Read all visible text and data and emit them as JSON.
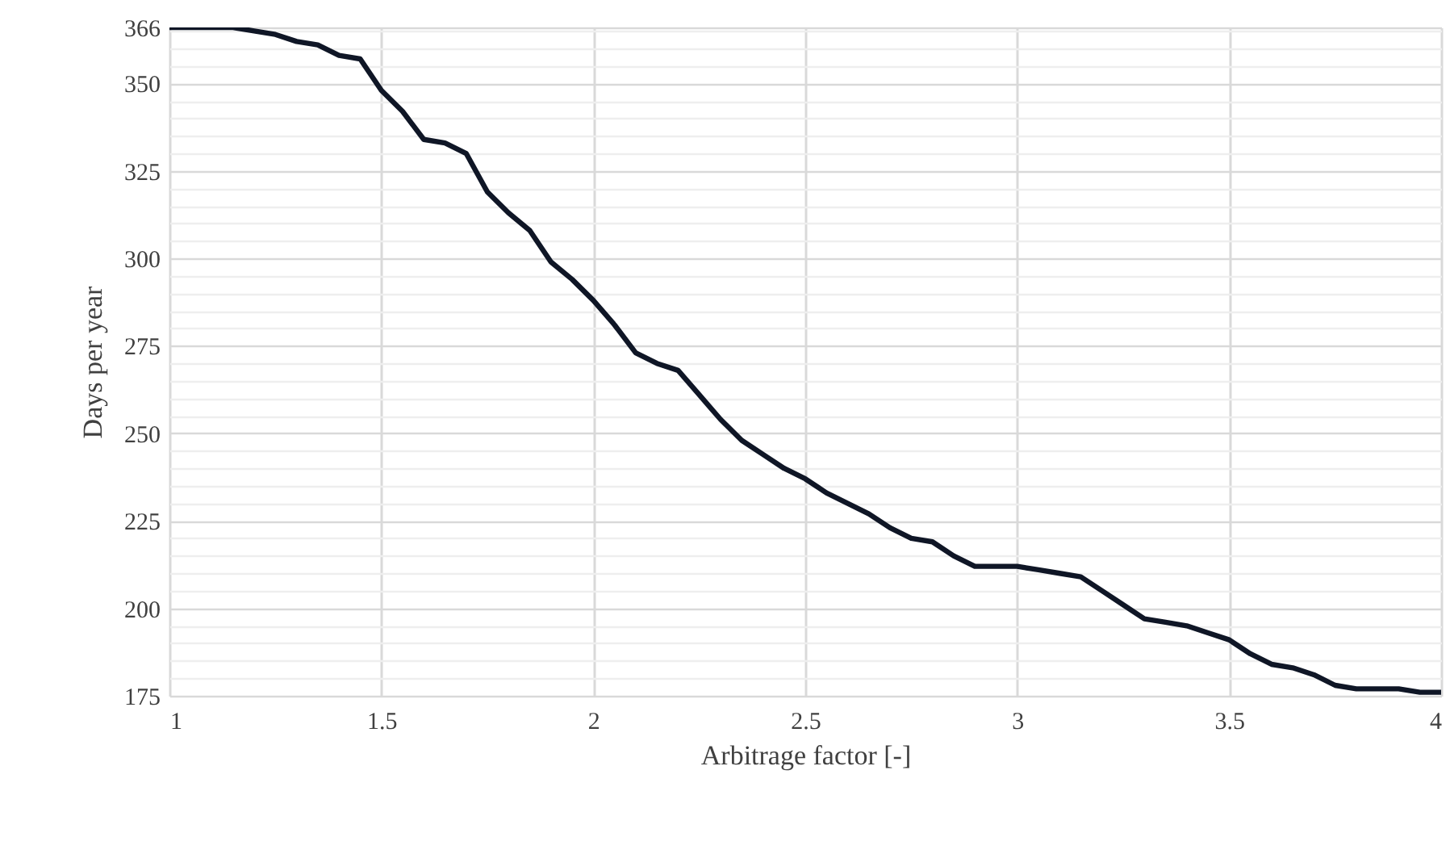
{
  "chart_data": {
    "type": "line",
    "xlabel": "Arbitrage factor [-]",
    "ylabel": "Days per year",
    "x": [
      1,
      1.05,
      1.1,
      1.15,
      1.2,
      1.25,
      1.3,
      1.35,
      1.4,
      1.45,
      1.5,
      1.55,
      1.6,
      1.65,
      1.7,
      1.75,
      1.8,
      1.85,
      1.9,
      1.95,
      2,
      2.05,
      2.1,
      2.15,
      2.2,
      2.25,
      2.3,
      2.35,
      2.4,
      2.45,
      2.5,
      2.55,
      2.6,
      2.65,
      2.7,
      2.75,
      2.8,
      2.85,
      2.9,
      2.95,
      3,
      3.05,
      3.1,
      3.15,
      3.2,
      3.25,
      3.3,
      3.35,
      3.4,
      3.45,
      3.5,
      3.55,
      3.6,
      3.65,
      3.7,
      3.75,
      3.8,
      3.85,
      3.9,
      3.95,
      4
    ],
    "series": [
      {
        "color": "#0f1626",
        "values": [
          366,
          366,
          366,
          366,
          365,
          364,
          362,
          361,
          358,
          357,
          348,
          342,
          334,
          333,
          330,
          319,
          313,
          308,
          299,
          294,
          288,
          281,
          273,
          270,
          268,
          261,
          254,
          248,
          244,
          240,
          237,
          233,
          230,
          227,
          223,
          220,
          219,
          215,
          212,
          212,
          212,
          211,
          210,
          209,
          205,
          201,
          197,
          196,
          195,
          193,
          191,
          187,
          184,
          183,
          181,
          178,
          177,
          177,
          177,
          176,
          176
        ]
      }
    ],
    "xlim": [
      1,
      4
    ],
    "xticks": [
      1,
      1.5,
      2,
      2.5,
      3,
      3.5,
      4
    ],
    "ylim": [
      175,
      366
    ],
    "yticks": [
      175,
      {
        "value": 180,
        "label": null
      },
      {
        "value": 185,
        "label": null
      },
      {
        "value": 190,
        "label": null
      },
      {
        "value": 195,
        "label": null
      },
      200,
      {
        "value": 205,
        "label": null
      },
      {
        "value": 210,
        "label": null
      },
      {
        "value": 215,
        "label": null
      },
      {
        "value": 220,
        "label": null
      },
      225,
      {
        "value": 230,
        "label": null
      },
      {
        "value": 235,
        "label": null
      },
      {
        "value": 240,
        "label": null
      },
      {
        "value": 245,
        "label": null
      },
      250,
      {
        "value": 255,
        "label": null
      },
      {
        "value": 260,
        "label": null
      },
      {
        "value": 265,
        "label": null
      },
      {
        "value": 270,
        "label": null
      },
      275,
      {
        "value": 280,
        "label": null
      },
      {
        "value": 285,
        "label": null
      },
      {
        "value": 290,
        "label": null
      },
      {
        "value": 295,
        "label": null
      },
      300,
      {
        "value": 305,
        "label": null
      },
      {
        "value": 310,
        "label": null
      },
      {
        "value": 315,
        "label": null
      },
      {
        "value": 320,
        "label": null
      },
      325,
      {
        "value": 330,
        "label": null
      },
      {
        "value": 335,
        "label": null
      },
      {
        "value": 340,
        "label": null
      },
      {
        "value": 345,
        "label": null
      },
      350,
      {
        "value": 355,
        "label": null
      },
      {
        "value": 360,
        "label": null
      },
      {
        "value": 365,
        "label": null
      },
      366
    ],
    "grid": true,
    "line_style": "solid"
  }
}
